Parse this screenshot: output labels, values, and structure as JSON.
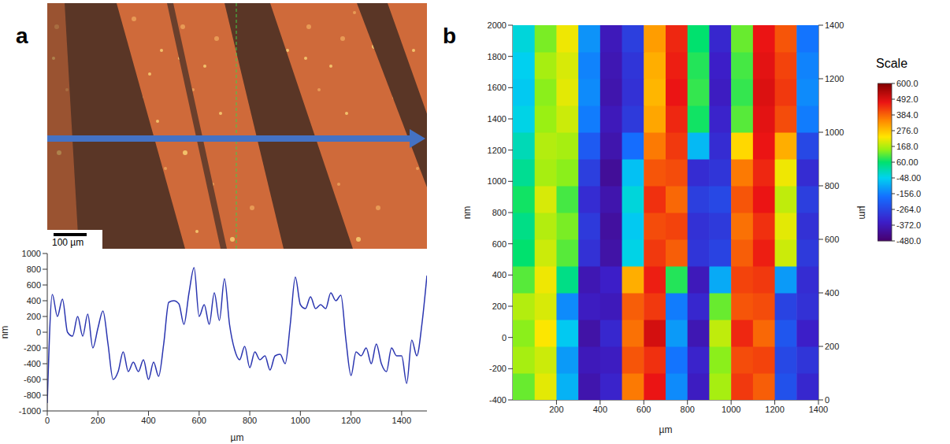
{
  "chart_data": [
    {
      "panel": "a",
      "type": "line",
      "annotations": [
        "100 µm"
      ],
      "xlabel": "µm",
      "ylabel": "nm",
      "xlim": [
        0,
        1500
      ],
      "xticks": [
        0,
        200,
        400,
        600,
        800,
        1000,
        1200,
        1400
      ],
      "ylim": [
        -1000,
        1000
      ],
      "yticks": [
        -1000,
        -800,
        -600,
        -400,
        -200,
        0,
        200,
        400,
        600,
        800,
        1000
      ],
      "x": [
        0,
        20,
        40,
        60,
        80,
        100,
        120,
        140,
        160,
        180,
        200,
        220,
        240,
        260,
        280,
        300,
        320,
        340,
        360,
        380,
        400,
        420,
        440,
        460,
        480,
        500,
        520,
        540,
        560,
        580,
        600,
        620,
        640,
        660,
        680,
        700,
        720,
        740,
        760,
        780,
        800,
        820,
        840,
        860,
        880,
        900,
        920,
        940,
        960,
        980,
        1000,
        1020,
        1040,
        1060,
        1080,
        1100,
        1120,
        1140,
        1160,
        1180,
        1200,
        1220,
        1240,
        1260,
        1280,
        1300,
        1320,
        1340,
        1360,
        1380,
        1400,
        1420,
        1440,
        1460,
        1480,
        1500
      ],
      "series": [
        {
          "color": "#2a35b0",
          "values": [
            -900,
            480,
            200,
            420,
            0,
            -50,
            200,
            -50,
            230,
            -200,
            50,
            270,
            -150,
            -600,
            -500,
            -250,
            -500,
            -380,
            -500,
            -350,
            -600,
            -380,
            -560,
            -150,
            380,
            400,
            360,
            100,
            500,
            820,
            200,
            350,
            100,
            500,
            150,
            680,
            100,
            -220,
            -350,
            -180,
            -450,
            -250,
            -350,
            -300,
            -480,
            -300,
            -280,
            -400,
            100,
            700,
            350,
            300,
            450,
            300,
            350,
            300,
            500,
            400,
            470,
            -100,
            -550,
            -250,
            -300,
            -200,
            -400,
            -150,
            -400,
            -500,
            -200,
            -300,
            -300,
            -650,
            -100,
            -300,
            100,
            720
          ]
        }
      ]
    },
    {
      "panel": "b",
      "type": "heatmap",
      "xlabel": "µm",
      "ylabel": "µm",
      "zlabel": "nm",
      "xlim": [
        0,
        1400
      ],
      "xticks": [
        200,
        400,
        600,
        800,
        1000,
        1200,
        1400
      ],
      "ylim": [
        0,
        1400
      ],
      "yticks": [
        0,
        200,
        400,
        600,
        800,
        1000,
        1200,
        1400
      ],
      "zlim": [
        -400,
        2000
      ],
      "zticks": [
        -400,
        -200,
        0,
        200,
        400,
        600,
        800,
        1000,
        1200,
        1400,
        1600,
        1800,
        2000
      ],
      "x": [
        50,
        150,
        250,
        350,
        450,
        550,
        650,
        750,
        850,
        950,
        1050,
        1150,
        1250,
        1350
      ],
      "y": [
        50,
        150,
        250,
        350,
        450,
        550,
        650,
        750,
        850,
        950,
        1050,
        1150,
        1250,
        1350
      ],
      "cells": [
        [
          120,
          210,
          -90,
          -390,
          -340,
          360,
          470,
          -140,
          -360,
          160,
          430,
          390,
          -240,
          -330
        ],
        [
          160,
          190,
          -120,
          -370,
          -360,
          400,
          440,
          -170,
          -340,
          140,
          410,
          420,
          -260,
          -300
        ],
        [
          140,
          230,
          -60,
          -400,
          -330,
          370,
          500,
          -120,
          -380,
          180,
          450,
          380,
          -230,
          -350
        ],
        [
          170,
          200,
          -140,
          -360,
          -370,
          390,
          430,
          -160,
          -330,
          120,
          400,
          410,
          -270,
          -310
        ],
        [
          110,
          220,
          40,
          -380,
          -350,
          300,
          460,
          80,
          -370,
          -100,
          420,
          430,
          -120,
          -320
        ],
        [
          60,
          190,
          110,
          -310,
          -400,
          -40,
          430,
          390,
          -300,
          -270,
          390,
          460,
          190,
          -290
        ],
        [
          40,
          170,
          130,
          -290,
          -410,
          -60,
          410,
          420,
          -310,
          -290,
          370,
          440,
          210,
          -310
        ],
        [
          70,
          200,
          100,
          -320,
          -390,
          -30,
          440,
          380,
          -280,
          -260,
          400,
          470,
          180,
          -280
        ],
        [
          30,
          160,
          140,
          -280,
          -420,
          -70,
          400,
          410,
          -320,
          -300,
          360,
          450,
          220,
          -320
        ],
        [
          0,
          170,
          160,
          -220,
          -390,
          -180,
          360,
          430,
          -80,
          -320,
          250,
          470,
          300,
          -260
        ],
        [
          -40,
          150,
          190,
          -160,
          -370,
          -290,
          310,
          450,
          70,
          -340,
          110,
          480,
          410,
          -160
        ],
        [
          -60,
          140,
          210,
          -140,
          -390,
          -310,
          290,
          470,
          90,
          -360,
          90,
          490,
          430,
          -140
        ],
        [
          -50,
          160,
          200,
          -150,
          -380,
          -300,
          300,
          460,
          80,
          -350,
          100,
          480,
          420,
          -150
        ],
        [
          -30,
          130,
          220,
          -130,
          -370,
          -280,
          320,
          450,
          60,
          -330,
          120,
          470,
          400,
          -170
        ]
      ],
      "colorbar": {
        "title": "Scale",
        "range": [
          -480,
          600
        ],
        "ticks": [
          {
            "value": 600,
            "label": "600.0"
          },
          {
            "value": 492,
            "label": "492.0"
          },
          {
            "value": 384,
            "label": "384.0"
          },
          {
            "value": 276,
            "label": "276.0"
          },
          {
            "value": 168,
            "label": "168.0"
          },
          {
            "value": 60,
            "label": "60.00"
          },
          {
            "value": -48,
            "label": "-48.00"
          },
          {
            "value": -156,
            "label": "-156.0"
          },
          {
            "value": -264,
            "label": "-264.0"
          },
          {
            "value": -372,
            "label": "-372.0"
          },
          {
            "value": -480,
            "label": "-480.0"
          }
        ]
      }
    }
  ]
}
